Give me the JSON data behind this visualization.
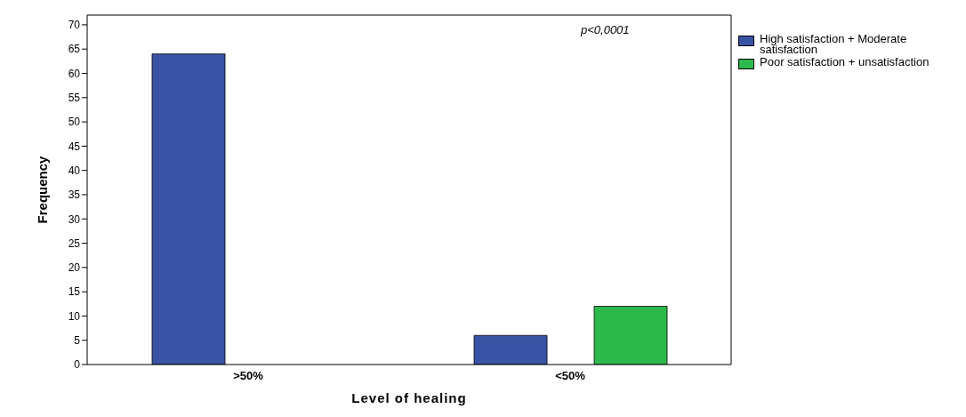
{
  "chart_data": {
    "type": "bar",
    "xlabel": "Level of healing",
    "ylabel": "Frequency",
    "categories": [
      ">50%",
      "<50%"
    ],
    "series": [
      {
        "name": "High satisfaction + Moderate satisfaction",
        "color": "#3953a4",
        "values": [
          64,
          6
        ]
      },
      {
        "name": "Poor satisfaction + unsatisfaction",
        "color": "#2db84c",
        "values": [
          0,
          12
        ]
      }
    ],
    "ylim": [
      0,
      72
    ],
    "yticks": [
      0,
      5,
      10,
      15,
      20,
      25,
      30,
      35,
      40,
      45,
      50,
      55,
      60,
      65,
      70
    ],
    "legend": "right",
    "annotations": [
      "p<0,0001"
    ]
  }
}
